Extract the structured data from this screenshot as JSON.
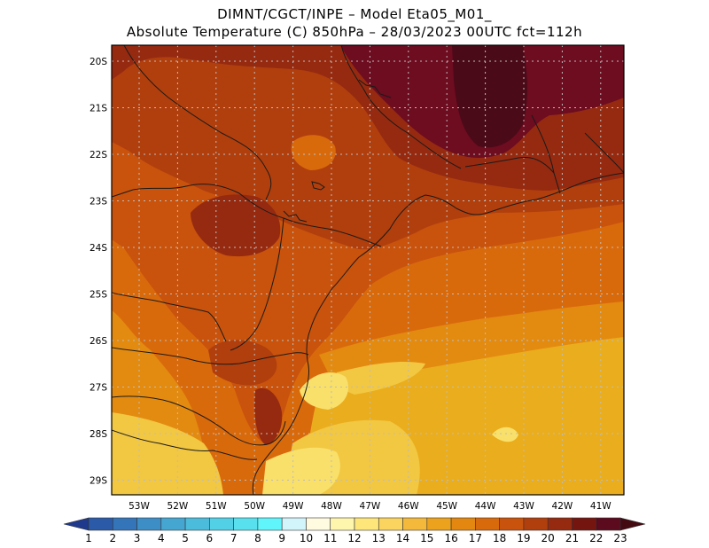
{
  "title": {
    "line1": "DIMNT/CGCT/INPE –  Model Eta05_M01_",
    "line2": "Absolute Temperature (C) 850hPa –  28/03/2023 00UTC fct=112h"
  },
  "axes": {
    "lat_labels": [
      "20S",
      "21S",
      "22S",
      "23S",
      "24S",
      "25S",
      "26S",
      "27S",
      "28S",
      "29S"
    ],
    "lon_labels": [
      "53W",
      "52W",
      "51W",
      "50W",
      "49W",
      "48W",
      "47W",
      "46W",
      "45W",
      "44W",
      "43W",
      "42W",
      "41W"
    ]
  },
  "colorbar": {
    "labels": [
      "1",
      "2",
      "3",
      "4",
      "5",
      "6",
      "7",
      "8",
      "9",
      "10",
      "11",
      "12",
      "13",
      "14",
      "15",
      "16",
      "17",
      "18",
      "19",
      "20",
      "21",
      "22",
      "23"
    ],
    "colors": [
      "#1f3a8c",
      "#2a5aa8",
      "#3474b8",
      "#3d8ec6",
      "#46a6d2",
      "#4cbcdc",
      "#52d0e6",
      "#58e0ee",
      "#60f4fb",
      "#d2f4fb",
      "#fffbe0",
      "#fff6ad",
      "#ffe67a",
      "#fbd45f",
      "#f4b93b",
      "#eda21d",
      "#e38710",
      "#d96a0c",
      "#c9530c",
      "#b13f0d",
      "#962a10",
      "#751510",
      "#5c0a1e",
      "#430a12"
    ]
  },
  "map_colors": {
    "c14": "#f9e06a",
    "c15": "#f2c742",
    "c16": "#eaad1d",
    "c17": "#e38b10",
    "c18": "#d96a0c",
    "c19": "#c9530c",
    "c20": "#b13f0d",
    "c21": "#962a10",
    "c22": "#6e0c20",
    "c23": "#4a0a18",
    "border": "#1a1a1a",
    "grid": "#bdbdbd"
  }
}
